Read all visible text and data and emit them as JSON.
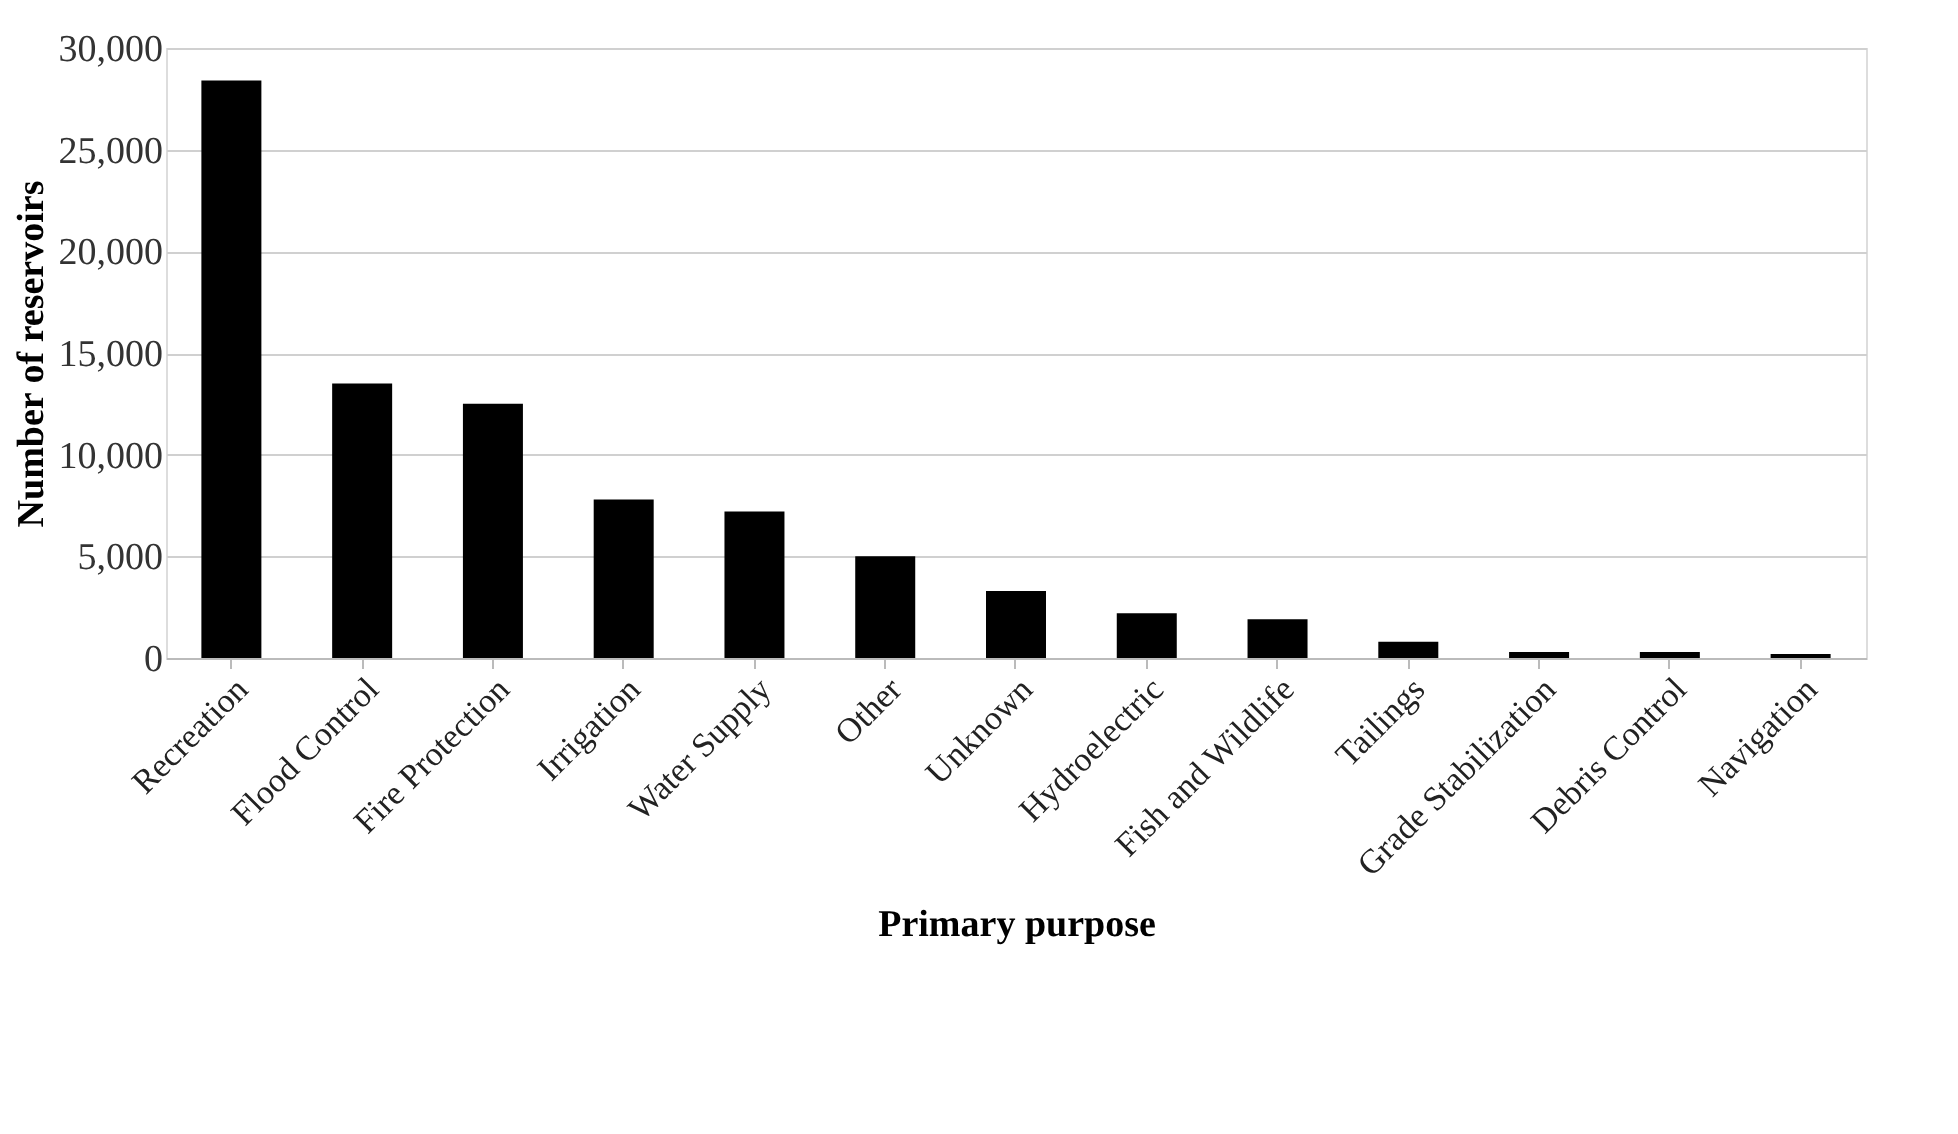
{
  "chart_data": {
    "type": "bar",
    "xlabel": "Primary purpose",
    "ylabel": "Number of reservoirs",
    "categories": [
      "Recreation",
      "Flood Control",
      "Fire Protection",
      "Irrigation",
      "Water Supply",
      "Other",
      "Unknown",
      "Hydroelectric",
      "Fish and Wildlife",
      "Tailings",
      "Grade Stabilization",
      "Debris Control",
      "Navigation"
    ],
    "values": [
      28400,
      13500,
      12500,
      7800,
      7200,
      5000,
      3300,
      2200,
      1900,
      800,
      300,
      300,
      200
    ],
    "color": "#000000",
    "ylim": [
      0,
      30000
    ],
    "yticks": [
      0,
      {
        "value": 5000,
        "label": "5,000"
      },
      {
        "value": 10000,
        "label": "10,000"
      },
      {
        "value": 15000,
        "label": "15,000"
      },
      {
        "value": 20000,
        "label": "20,000"
      },
      {
        "value": 25000,
        "label": "25,000"
      },
      {
        "value": 30000,
        "label": "30,000"
      }
    ],
    "grid": "y"
  }
}
